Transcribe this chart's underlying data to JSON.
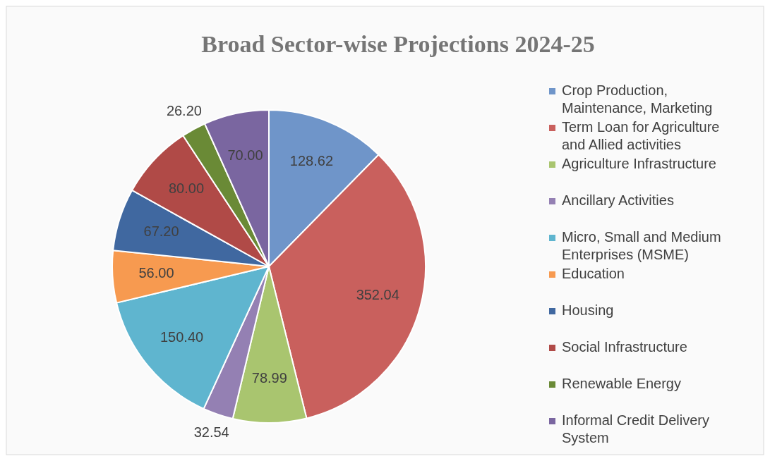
{
  "chart_data": {
    "type": "pie",
    "title": "Broad Sector-wise Projections 2024-25",
    "categories": [
      "Crop Production, Maintenance, Marketing",
      "Term Loan for Agriculture and Allied activities",
      "Agriculture Infrastructure",
      "Ancillary Activities",
      "Micro, Small and Medium Enterprises (MSME)",
      "Education",
      "Housing",
      "Social Infrastructure",
      "Renewable Energy",
      "Informal Credit Delivery System"
    ],
    "values": [
      128.62,
      352.04,
      78.99,
      32.54,
      150.4,
      56.0,
      67.2,
      80.0,
      26.2,
      70.0
    ],
    "value_labels": [
      "128.62",
      "352.04",
      "78.99",
      "32.54",
      "150.40",
      "56.00",
      "67.20",
      "80.00",
      "26.20",
      "70.00"
    ],
    "colors": [
      "#6f95c9",
      "#c9605d",
      "#a9c56f",
      "#9480b3",
      "#5fb5cf",
      "#f79a50",
      "#4068a0",
      "#b04a47",
      "#6a8a36",
      "#7a66a0"
    ],
    "legend": "right"
  }
}
